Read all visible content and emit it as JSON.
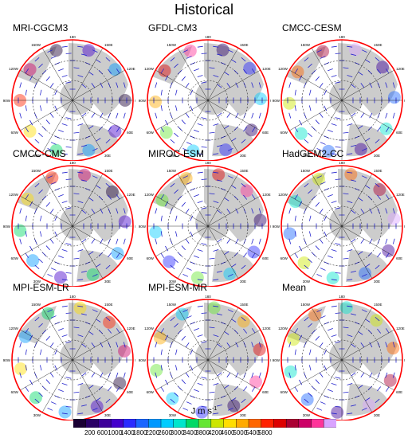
{
  "title": "Historical",
  "panels": [
    {
      "name": "MRI-CGCM3"
    },
    {
      "name": "GFDL-CM3"
    },
    {
      "name": "CMCC-CESM"
    },
    {
      "name": "CMCC-CMS"
    },
    {
      "name": "MIROC-ESM"
    },
    {
      "name": "HadGEM2-CC"
    },
    {
      "name": "MPI-ESM-LR"
    },
    {
      "name": "MPI-ESM-MR"
    },
    {
      "name": "Mean"
    }
  ],
  "map_labels": {
    "top": "180",
    "bottom": "0",
    "left": "90W",
    "right": "90E",
    "upper_left": "120W",
    "upper_left2": "150W",
    "upper_right": "120E",
    "upper_right2": "150E",
    "lower_left": "60W",
    "lower_left2": "30W",
    "lower_right": "60E",
    "lower_right2": "30E"
  },
  "colorbar": {
    "unit_base": "J m s",
    "unit_exp": "-1",
    "ticks": [
      "200",
      "600",
      "1000",
      "1400",
      "1800",
      "2200",
      "2600",
      "3000",
      "3400",
      "3800",
      "4200",
      "4600",
      "5000",
      "5400",
      "5800"
    ],
    "colors": [
      "#1a0033",
      "#2a0066",
      "#3d0099",
      "#4400cc",
      "#2a2aff",
      "#1a66ff",
      "#0099ff",
      "#00ccff",
      "#00e5cc",
      "#00d966",
      "#66e633",
      "#cce600",
      "#ffdd00",
      "#ffaa00",
      "#ff6600",
      "#ff2200",
      "#dd0000",
      "#aa0033",
      "#cc0066",
      "#ff3399",
      "#d9a3ff"
    ]
  },
  "colors": {
    "rim": "#ff0000",
    "land": "#cccccc",
    "ocean": "#ffffff",
    "vector": "#2222cc"
  }
}
